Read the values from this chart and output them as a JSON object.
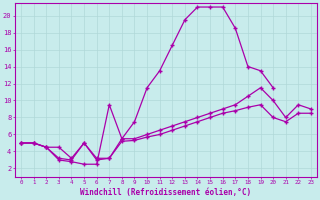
{
  "background_color": "#c8ecec",
  "grid_color": "#b0d8d8",
  "line_color": "#aa00aa",
  "marker": "+",
  "xlabel": "Windchill (Refroidissement éolien,°C)",
  "xlim": [
    -0.5,
    23.5
  ],
  "ylim": [
    1.0,
    21.5
  ],
  "yticks": [
    2,
    4,
    6,
    8,
    10,
    12,
    14,
    16,
    18,
    20
  ],
  "xticks": [
    0,
    1,
    2,
    3,
    4,
    5,
    6,
    7,
    8,
    9,
    10,
    11,
    12,
    13,
    14,
    15,
    16,
    17,
    18,
    19,
    20,
    21,
    22,
    23
  ],
  "line1_x": [
    0,
    1,
    2,
    3,
    4,
    5,
    6,
    7,
    8,
    9,
    10,
    11,
    12,
    13,
    14,
    15,
    16,
    17,
    18,
    19,
    20,
    21,
    22,
    23
  ],
  "line1_y": [
    5.0,
    5.0,
    4.5,
    3.0,
    2.8,
    2.5,
    2.5,
    9.5,
    5.5,
    7.5,
    11.5,
    13.5,
    16.5,
    19.5,
    21.0,
    21.0,
    21.0,
    18.5,
    14.0,
    13.5,
    11.5,
    null,
    null,
    null
  ],
  "line1b_x": [
    14,
    15,
    16,
    17,
    18,
    19,
    20,
    21,
    22,
    23
  ],
  "line1b_y": [
    21.0,
    21.0,
    21.0,
    18.5,
    14.0,
    13.5,
    11.5,
    null,
    null,
    null
  ],
  "line2_x": [
    0,
    1,
    2,
    3,
    4,
    5,
    6,
    7,
    8,
    9,
    10,
    11,
    12,
    13,
    14,
    15,
    16,
    17,
    18,
    19,
    20,
    21,
    22,
    23
  ],
  "line2_y": [
    5.0,
    5.0,
    4.5,
    4.5,
    3.2,
    5.0,
    3.0,
    3.2,
    5.5,
    5.5,
    6.0,
    6.5,
    7.0,
    7.5,
    8.0,
    8.5,
    9.0,
    9.5,
    10.5,
    11.5,
    10.0,
    8.0,
    9.5,
    9.0
  ],
  "line3_x": [
    0,
    1,
    2,
    3,
    4,
    5,
    6,
    7,
    8,
    9,
    10,
    11,
    12,
    13,
    14,
    15,
    16,
    17,
    18,
    19,
    20,
    21,
    22,
    23
  ],
  "line3_y": [
    5.0,
    5.0,
    4.5,
    3.2,
    3.0,
    5.0,
    3.2,
    3.2,
    5.2,
    5.3,
    5.7,
    6.0,
    6.5,
    7.0,
    7.5,
    8.0,
    8.5,
    8.8,
    9.2,
    9.5,
    8.0,
    7.5,
    8.5,
    8.5
  ]
}
